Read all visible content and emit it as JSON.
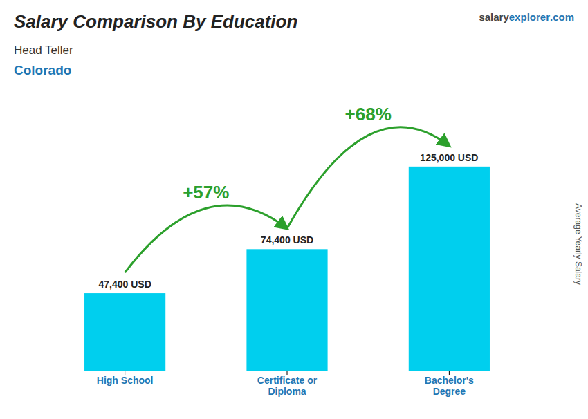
{
  "chart_data": {
    "type": "bar",
    "title": "Salary Comparison By Education",
    "subtitle": [
      "Head Teller",
      "Colorado"
    ],
    "watermark": [
      "salary",
      "explorer",
      ".com"
    ],
    "ylabel": "Average Yearly Salary",
    "categories": [
      "High School",
      "Certificate or\nDiploma",
      "Bachelor's\nDegree"
    ],
    "values": [
      47400,
      74400,
      125000
    ],
    "value_labels": [
      "47,400 USD",
      "74,400 USD",
      "125,000 USD"
    ],
    "annotations": [
      "+57%",
      "+68%"
    ],
    "color": "#00cfee",
    "ylim": [
      0,
      155000
    ],
    "grid": false,
    "data_labels": true,
    "tick_labels": "x"
  }
}
